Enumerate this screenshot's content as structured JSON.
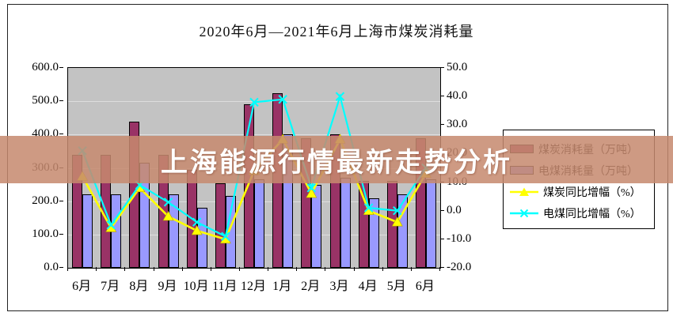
{
  "watermark": {
    "text": "上海能源行情最新走势分析",
    "band_color": "#C6896F"
  },
  "chart_data": {
    "type": "bar+line",
    "title": "2020年6月—2021年6月上海市煤炭消耗量",
    "categories": [
      "6月",
      "7月",
      "8月",
      "9月",
      "10月",
      "11月",
      "12月",
      "1月",
      "2月",
      "3月",
      "4月",
      "5月",
      "6月"
    ],
    "left_axis": {
      "min": 0,
      "max": 600,
      "step": 100,
      "tick_labels": [
        "600.0",
        "500.0",
        "400.0",
        "300.0",
        "200.0",
        "100.0",
        "0.0"
      ]
    },
    "right_axis": {
      "min": -20,
      "max": 50,
      "step": 10,
      "tick_labels": [
        "50.0",
        "40.0",
        "30.0",
        "20.0",
        "10.0",
        "0.0",
        "-10.0",
        "-20.0"
      ]
    },
    "bar_series": [
      {
        "name": "煤炭消耗量（万吨）",
        "color": "#993366",
        "values": [
          340,
          340,
          440,
          340,
          295,
          255,
          490,
          525,
          390,
          400,
          260,
          260,
          390
        ]
      },
      {
        "name": "电煤消耗量（万吨）",
        "color": "#9999FF",
        "values": [
          220,
          220,
          315,
          220,
          180,
          215,
          265,
          400,
          250,
          270,
          210,
          220,
          265
        ]
      }
    ],
    "line_series": [
      {
        "name": "煤炭同比增幅（%）",
        "color": "#FFFF00",
        "marker": "triangle",
        "values": [
          12,
          -6,
          8,
          -2,
          -7,
          -10,
          14,
          25,
          6,
          25,
          0,
          -4,
          13
        ]
      },
      {
        "name": "电煤同比增幅（%）",
        "color": "#00FFFF",
        "marker": "x",
        "values": [
          21,
          -5,
          9,
          3,
          -4,
          -9,
          38,
          39,
          8,
          40,
          1,
          0,
          15
        ]
      }
    ],
    "legend_position": "right",
    "grid": true,
    "plot_bg": "#C3C3C3"
  }
}
